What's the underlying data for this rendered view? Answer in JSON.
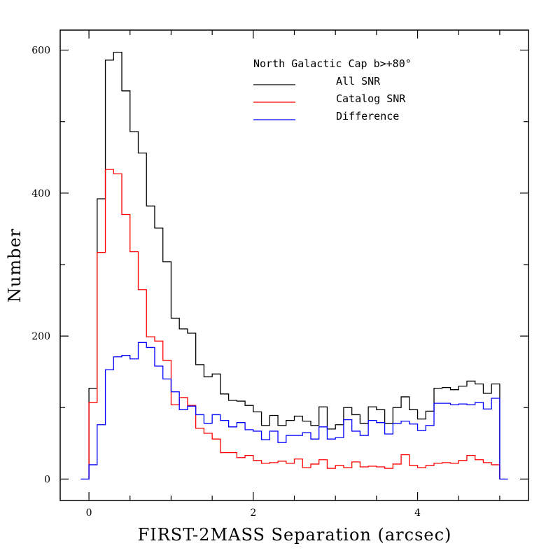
{
  "chart_data": {
    "type": "histogram",
    "xlabel": "FIRST-2MASS Separation (arcsec)",
    "ylabel": "Number",
    "xlim": [
      -0.35,
      5.35
    ],
    "ylim": [
      -30,
      628
    ],
    "x_ticks": [
      "0",
      "2",
      "4"
    ],
    "x_tick_values": [
      0,
      2,
      4
    ],
    "y_ticks": [
      "0",
      "200",
      "400",
      "600"
    ],
    "y_tick_values": [
      0,
      200,
      400,
      600
    ],
    "x_minor_step": 0.5,
    "y_minor_step": 100,
    "bin_width": 0.1,
    "legend": {
      "title": "North Galactic Cap b>+80°",
      "placement": "top-right"
    },
    "series": [
      {
        "name": "All SNR",
        "color": "#000000",
        "x_start": 0.0,
        "values": [
          127,
          392,
          586,
          597,
          543,
          486,
          456,
          382,
          351,
          304,
          225,
          210,
          204,
          160,
          143,
          147,
          119,
          110,
          109,
          103,
          94,
          75,
          89,
          75,
          82,
          88,
          81,
          75,
          101,
          70,
          76,
          100,
          90,
          78,
          101,
          97,
          78,
          100,
          115,
          97,
          84,
          95,
          127,
          128,
          125,
          130,
          137,
          133,
          120,
          133
        ]
      },
      {
        "name": "Catalog SNR",
        "color": "#ff0000",
        "x_start": 0.0,
        "values": [
          107,
          317,
          433,
          427,
          370,
          318,
          265,
          199,
          193,
          166,
          104,
          114,
          103,
          71,
          64,
          56,
          37,
          37,
          30,
          33,
          26,
          22,
          23,
          25,
          22,
          28,
          16,
          21,
          27,
          15,
          19,
          16,
          24,
          17,
          18,
          17,
          15,
          21,
          34,
          19,
          16,
          19,
          22,
          23,
          22,
          26,
          33,
          27,
          23,
          20
        ]
      },
      {
        "name": "Difference",
        "color": "#0000ff",
        "x_start": -0.1,
        "values": [
          0,
          20,
          76,
          153,
          171,
          173,
          168,
          191,
          184,
          158,
          140,
          122,
          97,
          102,
          90,
          78,
          90,
          82,
          73,
          79,
          69,
          67,
          55,
          67,
          51,
          61,
          61,
          65,
          56,
          73,
          56,
          58,
          83,
          67,
          61,
          82,
          79,
          63,
          78,
          81,
          77,
          68,
          75,
          106,
          106,
          104,
          105,
          104,
          107,
          98,
          113,
          0
        ]
      }
    ]
  }
}
